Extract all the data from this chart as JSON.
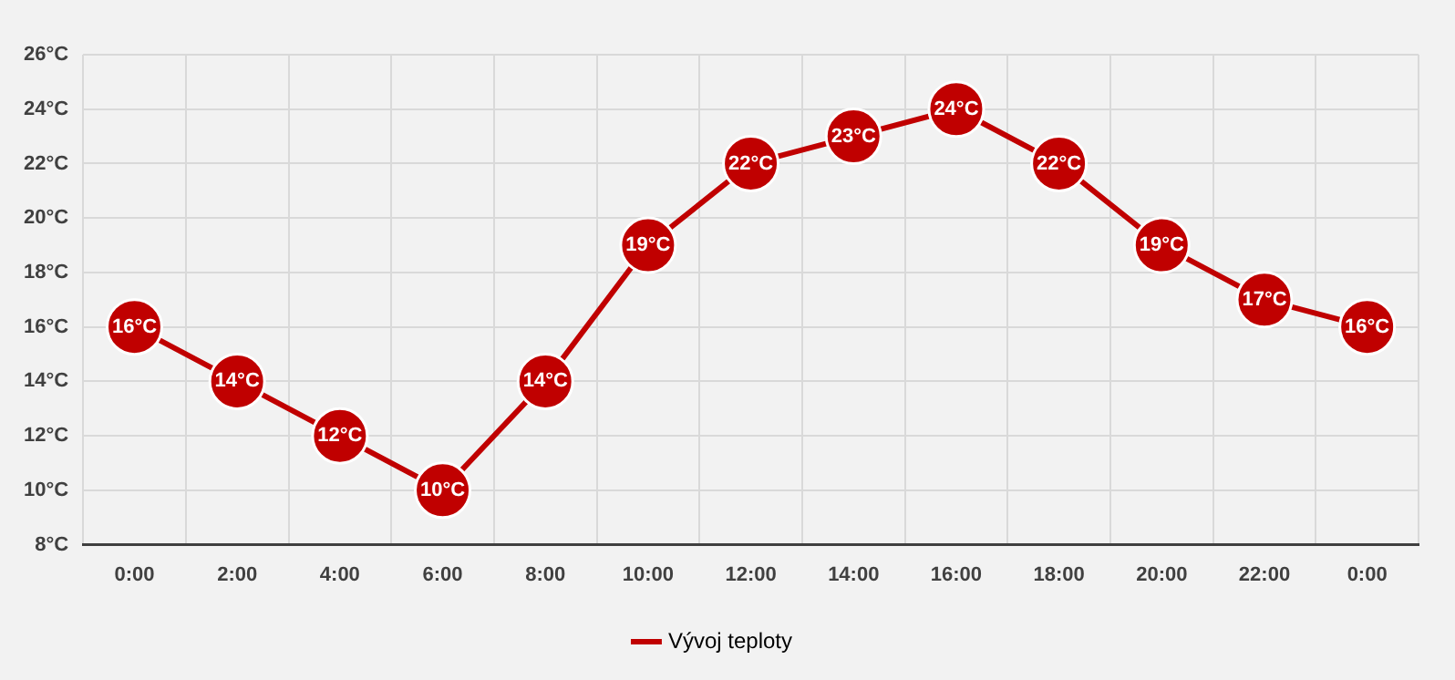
{
  "chart_data": {
    "type": "line",
    "categories": [
      "0:00",
      "2:00",
      "4:00",
      "6:00",
      "8:00",
      "10:00",
      "12:00",
      "14:00",
      "16:00",
      "18:00",
      "20:00",
      "22:00",
      "0:00"
    ],
    "series": [
      {
        "name": "Vývoj teploty",
        "color": "#c00000",
        "values": [
          16,
          14,
          12,
          10,
          14,
          19,
          22,
          23,
          24,
          22,
          19,
          17,
          16
        ],
        "value_labels": [
          "16°C",
          "14°C",
          "12°C",
          "10°C",
          "14°C",
          "19°C",
          "22°C",
          "23°C",
          "24°C",
          "22°C",
          "19°C",
          "17°C",
          "16°C"
        ]
      }
    ],
    "ylim": [
      8,
      26
    ],
    "yticks": [
      {
        "value": 8,
        "label": "8°C"
      },
      {
        "value": 10,
        "label": "10°C"
      },
      {
        "value": 12,
        "label": "12°C"
      },
      {
        "value": 14,
        "label": "14°C"
      },
      {
        "value": 16,
        "label": "16°C"
      },
      {
        "value": 18,
        "label": "18°C"
      },
      {
        "value": 20,
        "label": "20°C"
      },
      {
        "value": 22,
        "label": "22°C"
      },
      {
        "value": 24,
        "label": "24°C"
      },
      {
        "value": 26,
        "label": "26°C"
      }
    ],
    "grid": true,
    "legend": "bottom",
    "marker": "circle",
    "line_style": "solid"
  }
}
